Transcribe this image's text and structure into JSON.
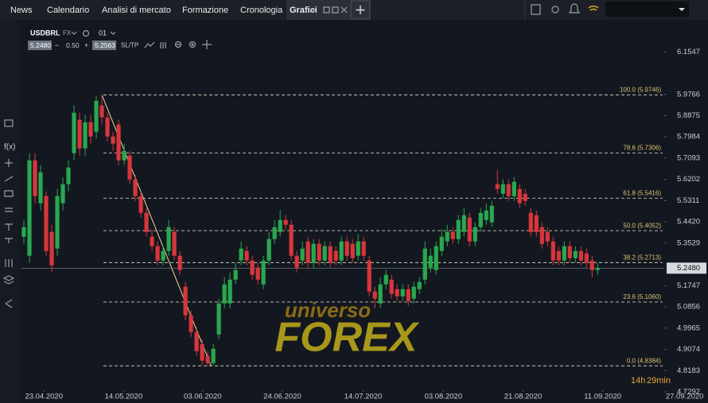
{
  "nav": {
    "tabs": [
      "News",
      "Calendario",
      "Analisi di mercato",
      "Formazione",
      "Cronologia",
      "Grafici"
    ]
  },
  "toolbar": {
    "symbol": "USDBRL",
    "market": "FX",
    "timeframe": "01",
    "bid": "5.2480",
    "spread": "0.50",
    "ask": "5.2563",
    "sltp": "SL/TP"
  },
  "watermark": {
    "line1": "universo",
    "line2": "FOREX"
  },
  "countdown": {
    "hours": "14h",
    "minutes": "29min"
  },
  "chart_data": {
    "type": "candlestick",
    "colors": {
      "up": "#2aa84f",
      "down": "#d8363c"
    },
    "ylim": [
      4.7292,
      6.2625
    ],
    "yticks": [
      6.1547,
      5.9766,
      5.8875,
      5.7984,
      5.7093,
      5.6202,
      5.5311,
      {
        "value": 5.442,
        "label": "5.4420"
      },
      5.3529,
      5.1747,
      5.0856,
      4.9965,
      4.9074,
      4.8183,
      4.7292
    ],
    "xlim": [
      -0.5,
      122.8
    ],
    "xticks": [
      {
        "value": 3.6,
        "label": "23.04.2020"
      },
      {
        "value": 17.9,
        "label": "14.05.2020"
      },
      {
        "value": 32.1,
        "label": "03.06.2020"
      },
      {
        "value": 46.4,
        "label": "24.06.2020"
      },
      {
        "value": 60.9,
        "label": "14.07.2020"
      },
      {
        "value": 75.3,
        "label": "03.08.2020"
      },
      {
        "value": 89.6,
        "label": "21.08.2020"
      },
      {
        "value": 103.9,
        "label": "11.09.2020"
      },
      {
        "value": 118.6,
        "label": "27.09.2020"
      }
    ],
    "last_price": {
      "value": 5.248,
      "label": "5.2480"
    },
    "fibonacci": [
      {
        "value": 5.9746,
        "label": "100.0 (5.9746)"
      },
      {
        "value": 5.7306,
        "label": "78.6 (5.7306)"
      },
      {
        "value": 5.5416,
        "label": "61.8 (5.5416)"
      },
      {
        "value": 5.4052,
        "label": "50.0 (5.4052)"
      },
      {
        "value": 5.2713,
        "label": "38.2 (5.2713)"
      },
      {
        "value": 5.106,
        "label": "23.6 (5.1060)"
      },
      {
        "value": 4.8384,
        "label": "0.0 (4.8384)"
      }
    ],
    "open": [
      5.38,
      5.3,
      5.7,
      5.52,
      5.55,
      5.4,
      5.33,
      5.52,
      5.6,
      5.73,
      5.87,
      5.75,
      5.86,
      5.82,
      5.93,
      5.88,
      5.8,
      5.85,
      5.7,
      5.72,
      5.62,
      5.55,
      5.48,
      5.38,
      5.34,
      5.28,
      5.32,
      5.4,
      5.3,
      5.17,
      5.05,
      4.98,
      4.93,
      4.88,
      4.85,
      4.97,
      5.1,
      5.1,
      5.2,
      5.28,
      5.32,
      5.28,
      5.25,
      5.18,
      5.28,
      5.37,
      5.4,
      5.45,
      5.43,
      5.3,
      5.28,
      5.36,
      5.27,
      5.35,
      5.28,
      5.34,
      5.32,
      5.28,
      5.36,
      5.35,
      5.3,
      5.36,
      5.28,
      5.15,
      5.1,
      5.18,
      5.2,
      5.16,
      5.13,
      5.16,
      5.12,
      5.16,
      5.2,
      5.25,
      5.24,
      5.32,
      5.36,
      5.4,
      5.37,
      5.4,
      5.46,
      5.36,
      5.42,
      5.45,
      5.44,
      5.6,
      5.56,
      5.6,
      5.55,
      5.58,
      5.56,
      5.48,
      5.47,
      5.42,
      5.4,
      5.36,
      5.32,
      5.28,
      5.34,
      5.29,
      5.32,
      5.31,
      5.28,
      5.24
    ],
    "high": [
      5.45,
      5.73,
      5.73,
      5.68,
      5.57,
      5.43,
      5.58,
      5.63,
      5.7,
      5.93,
      5.9,
      5.89,
      5.89,
      5.97,
      5.9746,
      5.9,
      5.82,
      5.87,
      5.77,
      5.74,
      5.64,
      5.57,
      5.5,
      5.41,
      5.36,
      5.34,
      5.45,
      5.42,
      5.32,
      5.19,
      5.07,
      5.0,
      4.95,
      4.9,
      4.93,
      5.12,
      5.21,
      5.23,
      5.27,
      5.36,
      5.34,
      5.3,
      5.27,
      5.3,
      5.4,
      5.45,
      5.49,
      5.47,
      5.45,
      5.32,
      5.36,
      5.38,
      5.37,
      5.37,
      5.36,
      5.36,
      5.34,
      5.38,
      5.38,
      5.37,
      5.39,
      5.38,
      5.3,
      5.17,
      5.21,
      5.24,
      5.22,
      5.18,
      5.18,
      5.18,
      5.19,
      5.21,
      5.36,
      5.33,
      5.36,
      5.41,
      5.43,
      5.42,
      5.47,
      5.5,
      5.48,
      5.44,
      5.5,
      5.52,
      5.53,
      5.66,
      5.62,
      5.62,
      5.63,
      5.6,
      5.58,
      5.5,
      5.49,
      5.44,
      5.42,
      5.38,
      5.34,
      5.36,
      5.36,
      5.34,
      5.34,
      5.33,
      5.3,
      5.27
    ],
    "low": [
      5.35,
      5.27,
      5.52,
      5.49,
      5.3,
      5.23,
      5.3,
      5.49,
      5.57,
      5.7,
      5.72,
      5.72,
      5.77,
      5.79,
      5.85,
      5.78,
      5.74,
      5.68,
      5.68,
      5.6,
      5.53,
      5.46,
      5.38,
      5.32,
      5.26,
      5.26,
      5.3,
      5.28,
      5.22,
      5.03,
      4.96,
      4.88,
      4.84,
      4.8384,
      4.84,
      4.95,
      5.08,
      5.08,
      5.18,
      5.26,
      5.26,
      5.2,
      5.18,
      5.16,
      5.26,
      5.35,
      5.38,
      5.41,
      5.28,
      5.23,
      5.26,
      5.25,
      5.25,
      5.26,
      5.26,
      5.25,
      5.26,
      5.26,
      5.28,
      5.27,
      5.28,
      5.28,
      5.13,
      5.08,
      5.08,
      5.16,
      5.12,
      5.11,
      5.11,
      5.09,
      5.1,
      5.14,
      5.18,
      5.23,
      5.22,
      5.3,
      5.34,
      5.35,
      5.35,
      5.38,
      5.34,
      5.34,
      5.4,
      5.43,
      5.42,
      5.56,
      5.54,
      5.53,
      5.53,
      5.5,
      5.51,
      5.38,
      5.38,
      5.33,
      5.34,
      5.26,
      5.26,
      5.26,
      5.27,
      5.27,
      5.26,
      5.25,
      5.21,
      5.22
    ],
    "close": [
      5.42,
      5.7,
      5.55,
      5.65,
      5.32,
      5.26,
      5.55,
      5.6,
      5.67,
      5.9,
      5.75,
      5.86,
      5.8,
      5.95,
      5.88,
      5.8,
      5.77,
      5.7,
      5.74,
      5.62,
      5.55,
      5.48,
      5.4,
      5.34,
      5.28,
      5.32,
      5.42,
      5.3,
      5.24,
      5.05,
      4.98,
      4.9,
      4.86,
      4.85,
      4.91,
      5.1,
      5.18,
      5.2,
      5.24,
      5.33,
      5.28,
      5.22,
      5.2,
      5.28,
      5.37,
      5.42,
      5.45,
      5.43,
      5.3,
      5.25,
      5.33,
      5.27,
      5.35,
      5.28,
      5.34,
      5.27,
      5.28,
      5.36,
      5.3,
      5.29,
      5.36,
      5.3,
      5.15,
      5.12,
      5.18,
      5.22,
      5.14,
      5.13,
      5.16,
      5.11,
      5.17,
      5.19,
      5.33,
      5.3,
      5.34,
      5.38,
      5.4,
      5.37,
      5.45,
      5.47,
      5.36,
      5.42,
      5.48,
      5.49,
      5.51,
      5.58,
      5.6,
      5.55,
      5.61,
      5.52,
      5.53,
      5.4,
      5.4,
      5.35,
      5.36,
      5.28,
      5.28,
      5.34,
      5.29,
      5.32,
      5.28,
      5.27,
      5.24,
      5.248
    ]
  }
}
